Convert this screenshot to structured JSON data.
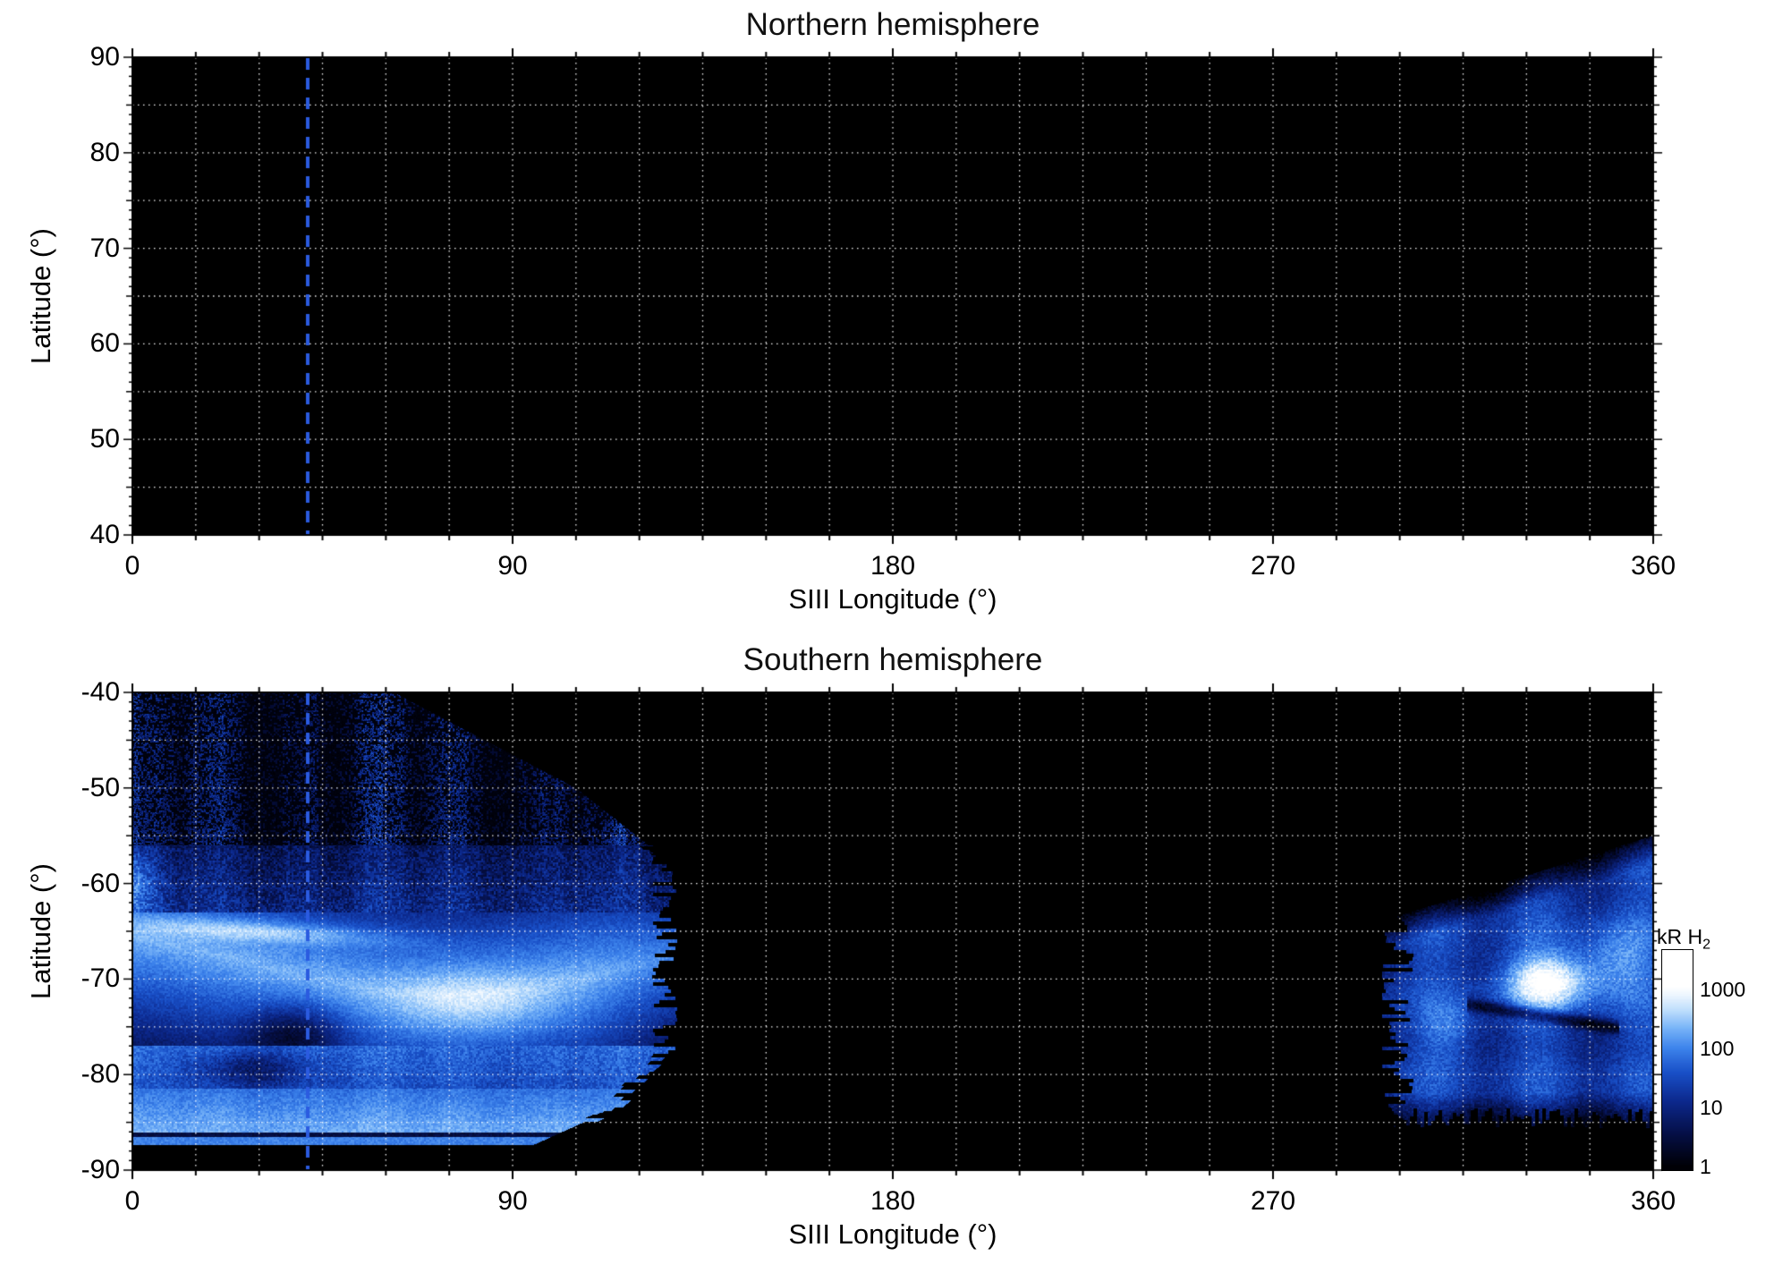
{
  "figure": {
    "background_color": "#ffffff",
    "plot_background_color": "#000000",
    "grid_color": "#ffffff",
    "marker_line": {
      "longitude_deg": 41.5,
      "color": "#2b5be0",
      "style": "dashed"
    }
  },
  "chart_data": [
    {
      "type": "heatmap",
      "panel": "north",
      "title": "Northern hemisphere",
      "xlabel": "SIII Longitude (°)",
      "ylabel": "Latitude (°)",
      "xlim": [
        0,
        360
      ],
      "ylim": [
        40,
        90
      ],
      "xticks": [
        0,
        90,
        180,
        270,
        360
      ],
      "xtick_labels": [
        "0",
        "90",
        "180",
        "270",
        "360"
      ],
      "yticks": [
        90,
        80,
        70,
        60,
        50,
        40
      ],
      "ytick_labels": [
        "90",
        "80",
        "70",
        "60",
        "50",
        "40"
      ],
      "grid": {
        "x_spacing_deg": 15,
        "y_spacing_deg": 5,
        "style": "dotted",
        "color": "#ffffff"
      },
      "dashed_marker_longitude_deg": 41.5,
      "coverage": "no observed emission; entire map area black"
    },
    {
      "type": "heatmap",
      "panel": "south",
      "title": "Southern hemisphere",
      "xlabel": "SIII Longitude (°)",
      "ylabel": "Latitude (°)",
      "xlim": [
        0,
        360
      ],
      "ylim": [
        -90,
        -40
      ],
      "xticks": [
        0,
        90,
        180,
        270,
        360
      ],
      "xtick_labels": [
        "0",
        "90",
        "180",
        "270",
        "360"
      ],
      "yticks": [
        -40,
        -50,
        -60,
        -70,
        -80,
        -90
      ],
      "ytick_labels": [
        "-40",
        "-50",
        "-60",
        "-70",
        "-80",
        "-90"
      ],
      "grid": {
        "x_spacing_deg": 15,
        "y_spacing_deg": 5,
        "style": "dotted",
        "color": "#ffffff"
      },
      "dashed_marker_longitude_deg": 41.5,
      "colorbar": {
        "label_main": "kR H",
        "label_sub": "2",
        "scale": "log",
        "ticks": [
          1000,
          100,
          10,
          1
        ],
        "tick_labels": [
          "1000",
          "100",
          "10",
          "1"
        ],
        "min_kR": 1,
        "max_kR": 1000
      },
      "emission_regions": [
        {
          "name": "left-observed-swath",
          "lon_range_deg": [
            0,
            126
          ],
          "lat_range_deg": [
            -87,
            -40
          ],
          "features": [
            {
              "name": "sparse-speckle-zone",
              "lat_range_deg": [
                -58,
                -40
              ],
              "typical_kR": "1-10"
            },
            {
              "name": "main-auroral-band",
              "lat_range_deg": [
                -77,
                -63
              ],
              "typical_kR": "100-700",
              "brightest_lon_deg": [
                55,
                100
              ]
            },
            {
              "name": "bright-thin-arc",
              "lat_deg": -65,
              "lon_range_deg": [
                5,
                60
              ],
              "typical_kR": "300-800"
            },
            {
              "name": "dark-oval-gap",
              "lon_range_deg": [
                27,
                50
              ],
              "lat_range_deg": [
                -79,
                -72
              ],
              "typical_kR": "5-40"
            },
            {
              "name": "secondary-low-band",
              "lat_range_deg": [
                -86,
                -82
              ],
              "typical_kR": "60-250"
            }
          ]
        },
        {
          "name": "right-observed-swath",
          "lon_range_deg": [
            300,
            360
          ],
          "lat_range_deg": [
            -85,
            -55
          ],
          "features": [
            {
              "name": "bright-white-spot",
              "lon_deg": 335,
              "lat_deg": -70,
              "peak_kR": 1000
            },
            {
              "name": "dark-gash",
              "lat_deg": -73.5,
              "lon_range_deg": [
                317,
                350
              ]
            },
            {
              "name": "diffuse-emission",
              "typical_kR": "20-200"
            }
          ]
        }
      ]
    }
  ]
}
